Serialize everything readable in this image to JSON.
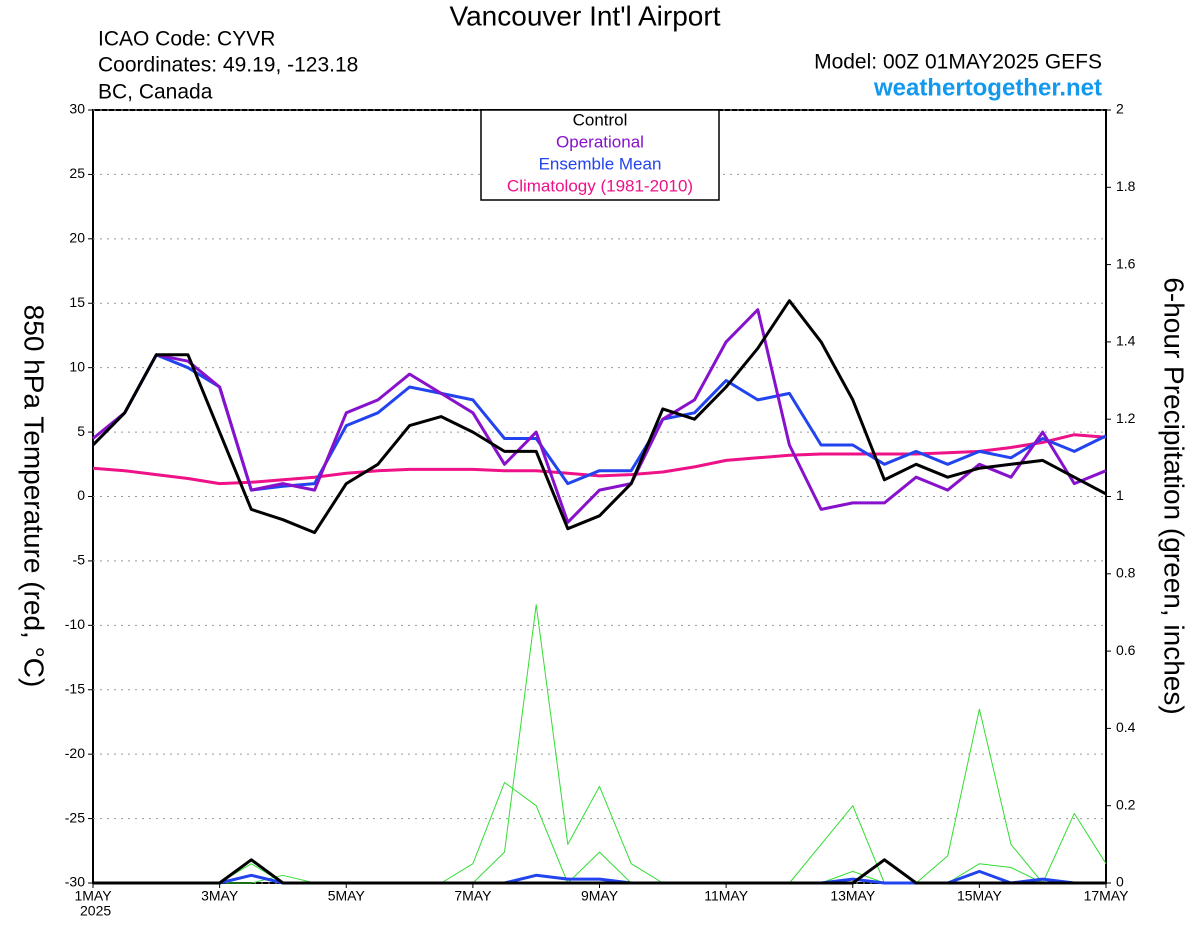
{
  "chart_data": {
    "type": "line",
    "title": "Vancouver Int'l Airport",
    "station": [
      "ICAO Code: CYVR",
      "Coordinates: 49.19, -123.18",
      "BC, Canada"
    ],
    "model": "Model: 00Z 01MAY2025 GEFS",
    "website": "weathertogether.net",
    "year_label": "2025",
    "y_label": "850 hPa Temperature (red, °C)",
    "y2_label": "6-hour Precipitation (green, inches)",
    "x": [
      0,
      12,
      24,
      36,
      48,
      60,
      72,
      84,
      96,
      108,
      120,
      132,
      144,
      156,
      168,
      180,
      192,
      204,
      216,
      228,
      240,
      252,
      264,
      276,
      288,
      300,
      312,
      324,
      336,
      348,
      360,
      372,
      384
    ],
    "xlim": [
      0,
      384
    ],
    "xticks": [
      {
        "value": 0,
        "label": "1MAY"
      },
      {
        "value": 48,
        "label": "3MAY"
      },
      {
        "value": 96,
        "label": "5MAY"
      },
      {
        "value": 144,
        "label": "7MAY"
      },
      {
        "value": 192,
        "label": "9MAY"
      },
      {
        "value": 240,
        "label": "11MAY"
      },
      {
        "value": 288,
        "label": "13MAY"
      },
      {
        "value": 336,
        "label": "15MAY"
      },
      {
        "value": 384,
        "label": "17MAY"
      }
    ],
    "ylim": [
      -30,
      30
    ],
    "yticks": [
      -30,
      -25,
      -20,
      -15,
      -10,
      -5,
      0,
      5,
      10,
      15,
      20,
      25,
      30
    ],
    "y2lim": [
      0,
      2
    ],
    "y2ticks": [
      0,
      0.2,
      0.4,
      0.6,
      0.8,
      1,
      1.2,
      1.4,
      1.6,
      1.8,
      2
    ],
    "grid": true,
    "legend": "top",
    "series": [
      {
        "color": "#33dd33",
        "axis": "y2",
        "values": [
          0,
          0,
          0,
          0,
          0,
          0.05,
          0,
          0,
          0,
          0,
          0,
          0,
          0,
          0.08,
          0.72,
          0.1,
          0.25,
          0.05,
          0,
          0,
          0,
          0,
          0,
          0,
          0.03,
          0,
          0,
          0,
          0.05,
          0.04,
          0,
          0,
          0
        ]
      },
      {
        "color": "#33dd33",
        "axis": "y2",
        "values": [
          0,
          0,
          0,
          0,
          0,
          0,
          0.02,
          0,
          0,
          0,
          0,
          0,
          0.05,
          0.26,
          0.2,
          0,
          0.08,
          0,
          0,
          0,
          0,
          0,
          0,
          0.1,
          0.2,
          0,
          0,
          0.07,
          0.45,
          0.1,
          0,
          0.18,
          0.05
        ]
      },
      {
        "color": "#2244ee",
        "axis": "y2",
        "values": [
          0,
          0,
          0,
          0,
          0,
          0.02,
          0,
          0,
          0,
          0,
          0,
          0,
          0,
          0,
          0.02,
          0.01,
          0.01,
          0,
          0,
          0,
          0,
          0,
          0,
          0,
          0.01,
          0,
          0,
          0,
          0.03,
          0,
          0.01,
          0,
          0
        ]
      },
      {
        "color": "#000000",
        "axis": "y2",
        "values": [
          0,
          0,
          0,
          0,
          0,
          0.06,
          0,
          0,
          0,
          0,
          0,
          0,
          0,
          0,
          0,
          0,
          0,
          0,
          0,
          0,
          0,
          0,
          0,
          0,
          0,
          0.06,
          0,
          0,
          0,
          0,
          0,
          0,
          0
        ]
      },
      {
        "name": "Climatology (1981-2010)",
        "color": "#ee1188",
        "values": [
          2.2,
          2.0,
          1.7,
          1.4,
          1.0,
          1.1,
          1.3,
          1.5,
          1.8,
          2.0,
          2.1,
          2.1,
          2.1,
          2.0,
          2.0,
          1.8,
          1.6,
          1.7,
          1.9,
          2.3,
          2.8,
          3.0,
          3.2,
          3.3,
          3.3,
          3.3,
          3.3,
          3.4,
          3.5,
          3.8,
          4.2,
          4.8,
          4.6
        ]
      },
      {
        "name": "Ensemble Mean",
        "color": "#2244ee",
        "values": [
          4,
          6.5,
          11,
          10,
          8.5,
          0.5,
          0.8,
          1,
          5.5,
          6.5,
          8.5,
          8,
          7.5,
          4.5,
          4.5,
          1,
          2,
          2,
          6,
          6.5,
          9,
          7.5,
          8,
          4,
          4,
          2.5,
          3.5,
          2.5,
          3.5,
          3,
          4.5,
          3.5,
          4.7
        ]
      },
      {
        "name": "Operational",
        "color": "#8811cc",
        "values": [
          4.5,
          6.5,
          11,
          10.5,
          8.5,
          0.5,
          1,
          0.5,
          6.5,
          7.5,
          9.5,
          8,
          6.5,
          2.5,
          5,
          -2,
          0.5,
          1,
          6,
          7.5,
          12,
          14.5,
          4,
          -1,
          -0.5,
          -0.5,
          1.5,
          0.5,
          2.5,
          1.5,
          5,
          1,
          2
        ]
      },
      {
        "name": "Control",
        "color": "#000000",
        "values": [
          4,
          6.5,
          11,
          11,
          5,
          -1,
          -1.8,
          -2.8,
          1,
          2.5,
          5.5,
          6.2,
          5,
          3.5,
          3.5,
          -2.5,
          -1.5,
          1,
          6.8,
          6,
          8.5,
          11.5,
          15.2,
          12,
          7.5,
          1.3,
          2.5,
          1.5,
          2.2,
          2.5,
          2.8,
          1.5,
          0.2
        ]
      }
    ]
  }
}
